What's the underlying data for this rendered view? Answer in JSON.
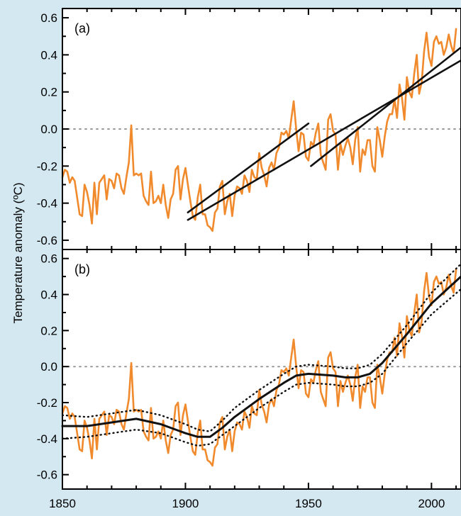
{
  "figure": {
    "ylabel": "Temperature anomaly (ºC)",
    "colors": {
      "background": "#d4e8f1",
      "observed": "#f08a2c",
      "fit": "#111111",
      "zero_line": "#999999",
      "panel": "#ffffff"
    }
  },
  "chart_data": [
    {
      "type": "line",
      "panel_label": "(a)",
      "ylim": [
        -0.65,
        0.65
      ],
      "xlim": [
        1850,
        2012
      ],
      "yticks": [
        "0.6",
        "0.4",
        "0.2",
        "0.0",
        "-0.2",
        "-0.4",
        "-0.6"
      ],
      "ytick_values": [
        0.6,
        0.4,
        0.2,
        0.0,
        -0.2,
        -0.4,
        -0.6
      ],
      "zero_line": true,
      "series": [
        {
          "kind": "observed",
          "x_start": 1850,
          "values": [
            -0.26,
            -0.22,
            -0.23,
            -0.29,
            -0.26,
            -0.28,
            -0.37,
            -0.46,
            -0.47,
            -0.3,
            -0.34,
            -0.41,
            -0.51,
            -0.29,
            -0.46,
            -0.29,
            -0.27,
            -0.25,
            -0.38,
            -0.27,
            -0.28,
            -0.32,
            -0.24,
            -0.25,
            -0.32,
            -0.35,
            -0.26,
            -0.18,
            0.02,
            -0.25,
            -0.24,
            -0.25,
            -0.24,
            -0.36,
            -0.39,
            -0.41,
            -0.23,
            -0.4,
            -0.39,
            -0.36,
            -0.4,
            -0.3,
            -0.41,
            -0.48,
            -0.38,
            -0.35,
            -0.22,
            -0.2,
            -0.38,
            -0.27,
            -0.21,
            -0.3,
            -0.39,
            -0.47,
            -0.49,
            -0.37,
            -0.3,
            -0.46,
            -0.46,
            -0.52,
            -0.53,
            -0.55,
            -0.45,
            -0.43,
            -0.31,
            -0.28,
            -0.46,
            -0.39,
            -0.35,
            -0.47,
            -0.36,
            -0.31,
            -0.32,
            -0.35,
            -0.25,
            -0.28,
            -0.34,
            -0.22,
            -0.26,
            -0.27,
            -0.13,
            -0.21,
            -0.25,
            -0.31,
            -0.21,
            -0.18,
            -0.22,
            -0.13,
            -0.1,
            -0.02,
            -0.03,
            -0.01,
            -0.05,
            0.05,
            0.15,
            0.0,
            -0.12,
            -0.02,
            -0.03,
            -0.15,
            -0.17,
            -0.07,
            -0.09,
            -0.02,
            0.03,
            -0.14,
            -0.18,
            -0.22,
            0.05,
            0.08,
            -0.01,
            -0.03,
            -0.22,
            -0.08,
            -0.14,
            -0.09,
            -0.05,
            -0.1,
            -0.19,
            -0.06,
            0.01,
            -0.23,
            -0.11,
            -0.14,
            -0.06,
            -0.06,
            -0.2,
            -0.23,
            0.01,
            -0.06,
            -0.15,
            -0.04,
            0.04,
            0.08,
            0.08,
            0.16,
            0.06,
            0.24,
            0.17,
            0.05,
            0.28,
            0.2,
            0.17,
            0.3,
            0.4,
            0.19,
            0.25,
            0.42,
            0.52,
            0.39,
            0.34,
            0.47,
            0.5,
            0.46,
            0.47,
            0.4,
            0.44,
            0.51,
            0.45,
            0.41,
            0.54
          ]
        },
        {
          "kind": "trend",
          "x": [
            1901,
            2012
          ],
          "y": [
            -0.49,
            0.37
          ]
        },
        {
          "kind": "trend",
          "x": [
            1901,
            1950
          ],
          "y": [
            -0.45,
            0.03
          ]
        },
        {
          "kind": "trend",
          "x": [
            1951,
            2012
          ],
          "y": [
            -0.2,
            0.44
          ]
        }
      ]
    },
    {
      "type": "line",
      "panel_label": "(b)",
      "ylim": [
        -0.68,
        0.65
      ],
      "xlim": [
        1850,
        2012
      ],
      "yticks": [
        "0.6",
        "0.4",
        "0.2",
        "0.0",
        "-0.2",
        "-0.4",
        "-0.6"
      ],
      "ytick_values": [
        0.6,
        0.4,
        0.2,
        0.0,
        -0.2,
        -0.4,
        -0.6
      ],
      "xticks": [
        "1850",
        "1900",
        "1950",
        "2000"
      ],
      "xtick_values": [
        1850,
        1900,
        1950,
        2000
      ],
      "zero_line": true,
      "series": [
        {
          "kind": "observed",
          "x_start": 1850,
          "values": [
            -0.26,
            -0.22,
            -0.23,
            -0.29,
            -0.26,
            -0.28,
            -0.37,
            -0.46,
            -0.47,
            -0.3,
            -0.34,
            -0.41,
            -0.51,
            -0.29,
            -0.46,
            -0.29,
            -0.27,
            -0.25,
            -0.38,
            -0.27,
            -0.28,
            -0.32,
            -0.24,
            -0.25,
            -0.32,
            -0.35,
            -0.26,
            -0.18,
            0.02,
            -0.25,
            -0.24,
            -0.25,
            -0.24,
            -0.36,
            -0.39,
            -0.41,
            -0.23,
            -0.4,
            -0.39,
            -0.36,
            -0.4,
            -0.3,
            -0.41,
            -0.48,
            -0.38,
            -0.35,
            -0.22,
            -0.2,
            -0.38,
            -0.27,
            -0.21,
            -0.3,
            -0.39,
            -0.47,
            -0.49,
            -0.37,
            -0.3,
            -0.46,
            -0.46,
            -0.52,
            -0.53,
            -0.55,
            -0.45,
            -0.43,
            -0.31,
            -0.28,
            -0.46,
            -0.39,
            -0.35,
            -0.47,
            -0.36,
            -0.31,
            -0.32,
            -0.35,
            -0.25,
            -0.28,
            -0.34,
            -0.22,
            -0.26,
            -0.27,
            -0.13,
            -0.21,
            -0.25,
            -0.31,
            -0.21,
            -0.18,
            -0.22,
            -0.13,
            -0.1,
            -0.02,
            -0.03,
            -0.01,
            -0.05,
            0.05,
            0.15,
            0.0,
            -0.12,
            -0.02,
            -0.03,
            -0.15,
            -0.17,
            -0.07,
            -0.09,
            -0.02,
            0.03,
            -0.14,
            -0.18,
            -0.22,
            0.05,
            0.08,
            -0.01,
            -0.03,
            -0.22,
            -0.08,
            -0.14,
            -0.09,
            -0.05,
            -0.1,
            -0.19,
            -0.06,
            0.01,
            -0.23,
            -0.11,
            -0.14,
            -0.06,
            -0.06,
            -0.2,
            -0.23,
            0.01,
            -0.06,
            -0.15,
            -0.04,
            0.04,
            0.08,
            0.08,
            0.16,
            0.06,
            0.24,
            0.17,
            0.05,
            0.28,
            0.2,
            0.17,
            0.3,
            0.4,
            0.19,
            0.25,
            0.42,
            0.52,
            0.39,
            0.34,
            0.47,
            0.5,
            0.46,
            0.47,
            0.4,
            0.44,
            0.51,
            0.45,
            0.41,
            0.54
          ]
        },
        {
          "kind": "smooth",
          "x": [
            1850,
            1860,
            1870,
            1880,
            1890,
            1900,
            1905,
            1910,
            1915,
            1920,
            1930,
            1940,
            1945,
            1950,
            1960,
            1965,
            1970,
            1975,
            1980,
            1990,
            2000,
            2012
          ],
          "y": [
            -0.33,
            -0.33,
            -0.31,
            -0.29,
            -0.32,
            -0.37,
            -0.39,
            -0.39,
            -0.34,
            -0.28,
            -0.18,
            -0.09,
            -0.05,
            -0.04,
            -0.05,
            -0.06,
            -0.06,
            -0.04,
            0.02,
            0.18,
            0.35,
            0.5
          ]
        },
        {
          "kind": "band",
          "x": [
            1850,
            1860,
            1870,
            1880,
            1890,
            1900,
            1905,
            1910,
            1915,
            1920,
            1930,
            1940,
            1945,
            1950,
            1960,
            1965,
            1970,
            1975,
            1980,
            1990,
            2000,
            2012
          ],
          "y": [
            -0.27,
            -0.28,
            -0.26,
            -0.24,
            -0.27,
            -0.32,
            -0.35,
            -0.36,
            -0.3,
            -0.23,
            -0.13,
            -0.04,
            0.0,
            0.01,
            0.0,
            -0.01,
            -0.01,
            0.01,
            0.07,
            0.23,
            0.41,
            0.57
          ]
        },
        {
          "kind": "band",
          "x": [
            1850,
            1860,
            1870,
            1880,
            1890,
            1900,
            1905,
            1910,
            1915,
            1920,
            1930,
            1940,
            1945,
            1950,
            1960,
            1965,
            1970,
            1975,
            1980,
            1990,
            2000,
            2012
          ],
          "y": [
            -0.4,
            -0.39,
            -0.37,
            -0.35,
            -0.37,
            -0.42,
            -0.44,
            -0.43,
            -0.38,
            -0.33,
            -0.23,
            -0.14,
            -0.1,
            -0.09,
            -0.1,
            -0.11,
            -0.11,
            -0.09,
            -0.04,
            0.13,
            0.29,
            0.43
          ]
        }
      ]
    }
  ]
}
